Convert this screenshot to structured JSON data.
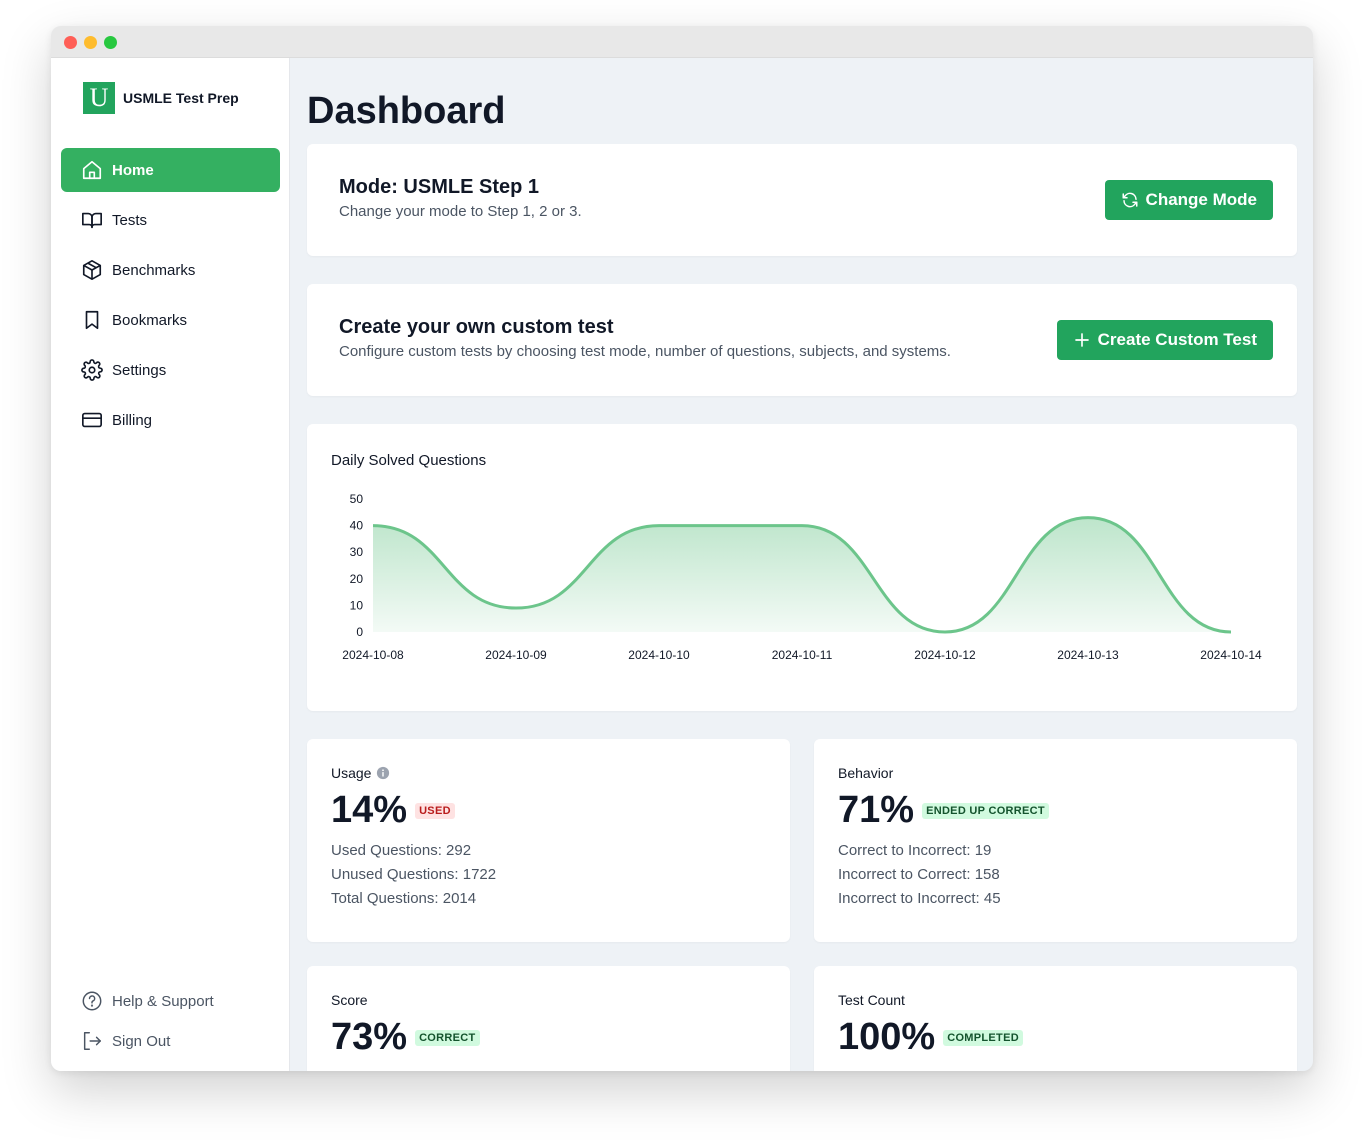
{
  "app": {
    "name": "USMLE Test Prep",
    "logo_letter": "U"
  },
  "sidebar": {
    "items": [
      {
        "label": "Home",
        "icon": "home-icon",
        "active": true
      },
      {
        "label": "Tests",
        "icon": "book-open-icon",
        "active": false
      },
      {
        "label": "Benchmarks",
        "icon": "cube-icon",
        "active": false
      },
      {
        "label": "Bookmarks",
        "icon": "bookmark-icon",
        "active": false
      },
      {
        "label": "Settings",
        "icon": "gear-icon",
        "active": false
      },
      {
        "label": "Billing",
        "icon": "credit-card-icon",
        "active": false
      }
    ],
    "bottom": [
      {
        "label": "Help & Support",
        "icon": "help-circle-icon"
      },
      {
        "label": "Sign Out",
        "icon": "sign-out-icon"
      }
    ]
  },
  "main": {
    "title": "Dashboard",
    "mode_card": {
      "title": "Mode: USMLE Step 1",
      "subtitle": "Change your mode to Step 1, 2 or 3.",
      "button_label": "Change Mode",
      "button_icon": "refresh-icon"
    },
    "custom_card": {
      "title": "Create your own custom test",
      "subtitle": "Configure custom tests by choosing test mode, number of questions, subjects, and systems.",
      "button_label": "Create Custom Test",
      "button_icon": "plus-icon"
    },
    "stats": {
      "usage": {
        "label": "Usage",
        "value": "14%",
        "badge": "USED",
        "lines": [
          "Used Questions: 292",
          "Unused Questions: 1722",
          "Total Questions: 2014"
        ]
      },
      "behavior": {
        "label": "Behavior",
        "value": "71%",
        "badge": "ENDED UP CORRECT",
        "lines": [
          "Correct to Incorrect: 19",
          "Incorrect to Correct: 158",
          "Incorrect to Incorrect: 45"
        ]
      },
      "score": {
        "label": "Score",
        "value": "73%",
        "badge": "CORRECT"
      },
      "test_count": {
        "label": "Test Count",
        "value": "100%",
        "badge": "COMPLETED"
      }
    }
  },
  "colors": {
    "accent": "#22a45d",
    "active_nav": "#34b061",
    "chart_line": "#6cc58b",
    "badge_red": "#fee2e2",
    "badge_green": "#d1fadf"
  },
  "chart_data": {
    "type": "area",
    "title": "Daily Solved Questions",
    "x": [
      "2024-10-08",
      "2024-10-09",
      "2024-10-10",
      "2024-10-11",
      "2024-10-12",
      "2024-10-13",
      "2024-10-14"
    ],
    "series": [
      {
        "values": [
          40,
          9,
          40,
          40,
          0,
          43,
          0
        ]
      }
    ],
    "yticks": [
      0,
      10,
      20,
      30,
      40,
      50
    ],
    "ylim": [
      0,
      50
    ],
    "grid": false,
    "legend": "none"
  }
}
